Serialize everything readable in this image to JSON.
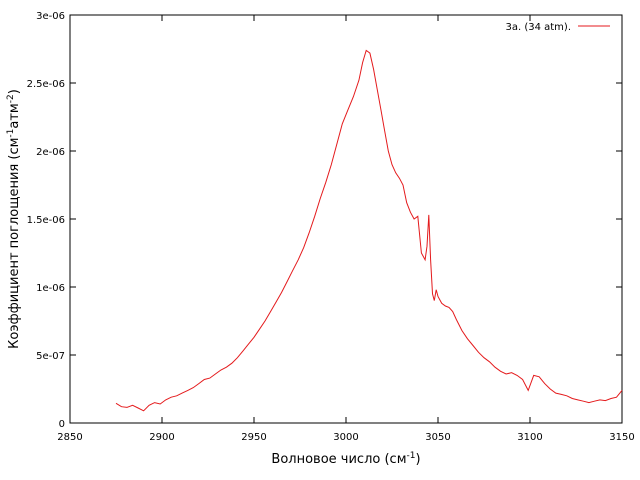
{
  "chart_data": {
    "type": "line",
    "title": "",
    "xlabel": "Волновое число (см",
    "xlabel_sup": "-1",
    "xlabel_tail": ")",
    "ylabel": "Коэффициент поглощения (см",
    "ylabel_sup1": "-1",
    "ylabel_mid": "атм",
    "ylabel_sup2": "-2",
    "ylabel_tail": ")",
    "xlim": [
      2850,
      3150
    ],
    "ylim": [
      0,
      3e-06
    ],
    "x_ticks": [
      2850,
      2900,
      2950,
      3000,
      3050,
      3100,
      3150
    ],
    "x_tick_labels": [
      "2850",
      "2900",
      "2950",
      "3000",
      "3050",
      "3100",
      "3150"
    ],
    "y_ticks": [
      0,
      5e-07,
      1e-06,
      1.5e-06,
      2e-06,
      2.5e-06,
      3e-06
    ],
    "y_tick_labels": [
      "0",
      "5e-07",
      "1e-06",
      "1.5e-06",
      "2e-06",
      "2.5e-06",
      "3e-06"
    ],
    "grid": false,
    "legend": "top-right",
    "series": [
      {
        "name": "3a. (34 atm).",
        "color": "#e41a1c",
        "x": [
          2875,
          2878,
          2881,
          2884,
          2887,
          2890,
          2893,
          2896,
          2899,
          2902,
          2905,
          2908,
          2911,
          2914,
          2917,
          2920,
          2923,
          2926,
          2929,
          2932,
          2935,
          2938,
          2941,
          2944,
          2947,
          2950,
          2953,
          2956,
          2959,
          2962,
          2965,
          2968,
          2971,
          2974,
          2977,
          2980,
          2983,
          2986,
          2989,
          2992,
          2995,
          2998,
          3001,
          3004,
          3007,
          3009,
          3011,
          3013,
          3015,
          3017,
          3019,
          3021,
          3023,
          3025,
          3027,
          3029,
          3031,
          3033,
          3035,
          3037,
          3039,
          3041,
          3043,
          3044,
          3045,
          3046,
          3047,
          3048,
          3049,
          3050,
          3052,
          3054,
          3056,
          3058,
          3060,
          3063,
          3066,
          3069,
          3072,
          3075,
          3078,
          3081,
          3084,
          3087,
          3090,
          3093,
          3096,
          3099,
          3102,
          3105,
          3108,
          3111,
          3114,
          3117,
          3120,
          3123,
          3126,
          3129,
          3132,
          3135,
          3138,
          3141,
          3144,
          3147,
          3150
        ],
        "y": [
          1.45e-07,
          1.2e-07,
          1.15e-07,
          1.3e-07,
          1.1e-07,
          9e-08,
          1.3e-07,
          1.5e-07,
          1.4e-07,
          1.7e-07,
          1.9e-07,
          2e-07,
          2.2e-07,
          2.4e-07,
          2.6e-07,
          2.9e-07,
          3.2e-07,
          3.3e-07,
          3.6e-07,
          3.9e-07,
          4.1e-07,
          4.4e-07,
          4.8e-07,
          5.3e-07,
          5.8e-07,
          6.3e-07,
          6.9e-07,
          7.5e-07,
          8.2e-07,
          8.9e-07,
          9.6e-07,
          1.04e-06,
          1.12e-06,
          1.2e-06,
          1.29e-06,
          1.4e-06,
          1.52e-06,
          1.65e-06,
          1.77e-06,
          1.9e-06,
          2.05e-06,
          2.2e-06,
          2.3e-06,
          2.4e-06,
          2.52e-06,
          2.65e-06,
          2.74e-06,
          2.72e-06,
          2.6e-06,
          2.45e-06,
          2.3e-06,
          2.15e-06,
          2e-06,
          1.9e-06,
          1.84e-06,
          1.8e-06,
          1.75e-06,
          1.62e-06,
          1.55e-06,
          1.5e-06,
          1.52e-06,
          1.25e-06,
          1.2e-06,
          1.3e-06,
          1.53e-06,
          1.2e-06,
          9.5e-07,
          9e-07,
          9.8e-07,
          9.3e-07,
          8.8e-07,
          8.6e-07,
          8.5e-07,
          8.2e-07,
          7.6e-07,
          6.8e-07,
          6.2e-07,
          5.7e-07,
          5.2e-07,
          4.8e-07,
          4.5e-07,
          4.1e-07,
          3.8e-07,
          3.6e-07,
          3.7e-07,
          3.5e-07,
          3.2e-07,
          2.4e-07,
          3.5e-07,
          3.4e-07,
          2.9e-07,
          2.5e-07,
          2.2e-07,
          2.1e-07,
          2e-07,
          1.8e-07,
          1.7e-07,
          1.6e-07,
          1.5e-07,
          1.6e-07,
          1.7e-07,
          1.65e-07,
          1.8e-07,
          1.9e-07,
          2.4e-07
        ]
      }
    ]
  }
}
